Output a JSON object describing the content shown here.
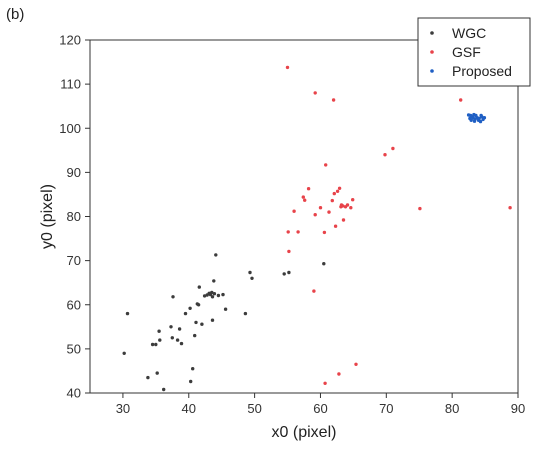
{
  "figure_label": "(b)",
  "chart_data": {
    "type": "scatter",
    "xlabel": "x0 (pixel)",
    "ylabel": "y0 (pixel)",
    "xlim": [
      25,
      90
    ],
    "ylim": [
      40,
      120
    ],
    "xticks": [
      30,
      40,
      50,
      60,
      70,
      80,
      90
    ],
    "yticks": [
      40,
      50,
      60,
      70,
      80,
      90,
      100,
      110,
      120
    ],
    "grid": false,
    "legend_position": "top-right",
    "series": [
      {
        "name": "WGC",
        "color": "#3c3c3c",
        "points": [
          [
            30.2,
            49
          ],
          [
            30.7,
            58
          ],
          [
            33.8,
            43.5
          ],
          [
            34.5,
            51
          ],
          [
            35,
            51
          ],
          [
            35.2,
            44.5
          ],
          [
            35.5,
            54
          ],
          [
            35.6,
            52
          ],
          [
            36.2,
            40.8
          ],
          [
            37.3,
            55
          ],
          [
            37.5,
            52.5
          ],
          [
            37.6,
            61.8
          ],
          [
            38.3,
            52
          ],
          [
            38.6,
            54.5
          ],
          [
            38.9,
            51.2
          ],
          [
            39.5,
            58
          ],
          [
            40.2,
            59.2
          ],
          [
            40.3,
            42.6
          ],
          [
            40.6,
            45.5
          ],
          [
            40.9,
            53
          ],
          [
            41.1,
            56
          ],
          [
            41.3,
            60.2
          ],
          [
            41.5,
            60
          ],
          [
            42,
            55.6
          ],
          [
            42.4,
            62
          ],
          [
            42.8,
            62.2
          ],
          [
            43.1,
            62.6
          ],
          [
            43.3,
            62.3
          ],
          [
            43.5,
            62.8
          ],
          [
            43.6,
            61.8
          ],
          [
            43.8,
            65.4
          ],
          [
            43.9,
            62.5
          ],
          [
            44.1,
            71.3
          ],
          [
            44.5,
            62.1
          ],
          [
            45.2,
            62.3
          ],
          [
            45.6,
            59
          ],
          [
            48.6,
            58
          ],
          [
            49.3,
            67.3
          ],
          [
            49.6,
            66
          ],
          [
            54.5,
            67
          ],
          [
            55.2,
            67.3
          ],
          [
            60.5,
            69.3
          ],
          [
            41.6,
            64
          ],
          [
            43.6,
            56.5
          ]
        ]
      },
      {
        "name": "GSF",
        "color": "#e8434a",
        "points": [
          [
            55,
            113.8
          ],
          [
            59.2,
            108
          ],
          [
            62,
            106.4
          ],
          [
            60.8,
            91.7
          ],
          [
            69.8,
            94
          ],
          [
            71,
            95.4
          ],
          [
            57.4,
            84.4
          ],
          [
            58.2,
            86.3
          ],
          [
            57.6,
            83.7
          ],
          [
            59.2,
            80.4
          ],
          [
            60,
            82
          ],
          [
            61.3,
            81
          ],
          [
            61.8,
            83.6
          ],
          [
            62.1,
            85.2
          ],
          [
            62.6,
            85.7
          ],
          [
            63.1,
            82.2
          ],
          [
            63.4,
            82.4
          ],
          [
            63.8,
            82.2
          ],
          [
            64.1,
            82.6
          ],
          [
            62.9,
            86.4
          ],
          [
            63.5,
            79.2
          ],
          [
            62.3,
            77.8
          ],
          [
            64.9,
            83.8
          ],
          [
            55.1,
            76.5
          ],
          [
            55.2,
            72.1
          ],
          [
            56.6,
            76.5
          ],
          [
            60.6,
            76.4
          ],
          [
            59,
            63.1
          ],
          [
            60.7,
            42.2
          ],
          [
            62.8,
            44.3
          ],
          [
            65.4,
            46.5
          ],
          [
            75.1,
            81.8
          ],
          [
            81.3,
            106.4
          ],
          [
            88.8,
            82
          ],
          [
            56,
            81.2
          ],
          [
            63.2,
            82.6
          ],
          [
            64.6,
            82
          ]
        ]
      },
      {
        "name": "Proposed",
        "color": "#1f5fc4",
        "points": [
          [
            82.5,
            103
          ],
          [
            82.7,
            102.2
          ],
          [
            82.9,
            101.8
          ],
          [
            83.1,
            102.6
          ],
          [
            83.2,
            102.3
          ],
          [
            83.4,
            101.6
          ],
          [
            83.5,
            102.1
          ],
          [
            83.6,
            102.9
          ],
          [
            83.8,
            102.4
          ],
          [
            84,
            101.8
          ],
          [
            84.1,
            102.2
          ],
          [
            84.3,
            101.5
          ],
          [
            84.5,
            102.6
          ],
          [
            84.7,
            102
          ],
          [
            84.9,
            102.4
          ],
          [
            82.8,
            102.9
          ],
          [
            83.3,
            103.1
          ],
          [
            84.4,
            102.9
          ]
        ]
      }
    ]
  }
}
